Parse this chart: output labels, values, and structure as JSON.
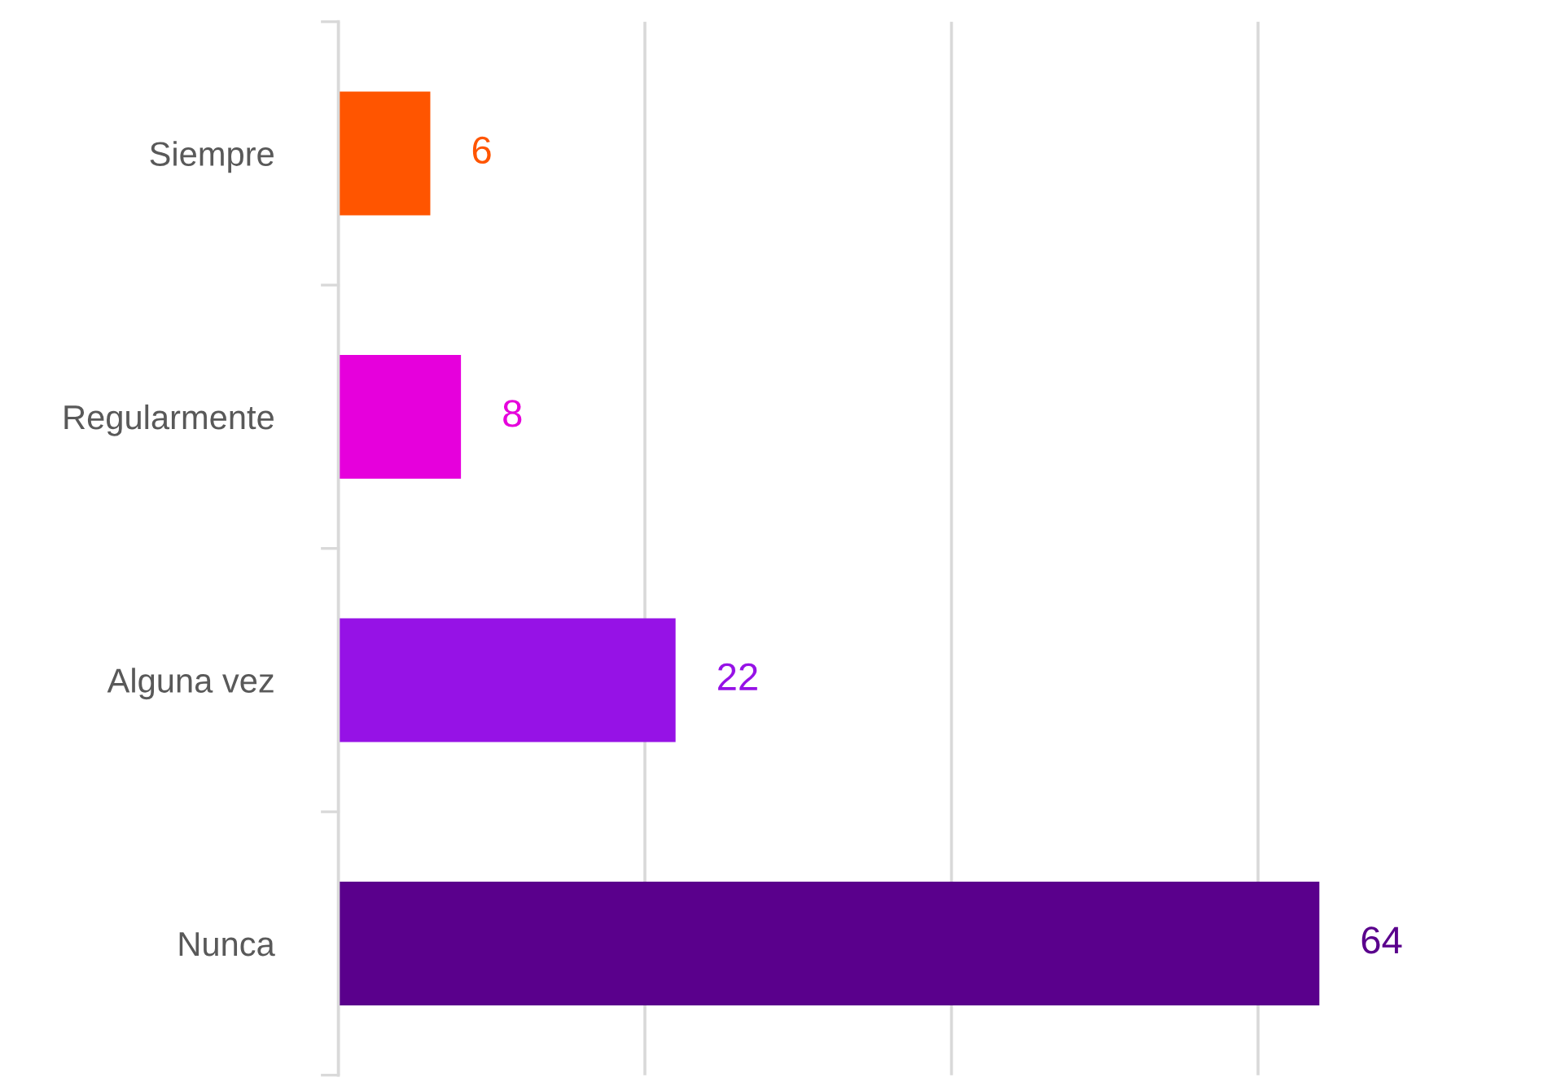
{
  "chart_data": {
    "type": "bar",
    "orientation": "horizontal",
    "categories": [
      "Siempre",
      "Regularmente",
      "Alguna vez",
      "Nunca"
    ],
    "values": [
      6,
      8,
      22,
      64
    ],
    "colors": [
      "#ff5500",
      "#e600dc",
      "#9612e6",
      "#5a008c"
    ],
    "data_labels": true,
    "xticks": [
      {
        "value": 0,
        "label": null
      },
      {
        "value": 20,
        "label": null
      },
      {
        "value": 40,
        "label": null
      },
      {
        "value": 60,
        "label": null
      }
    ],
    "grid": "x",
    "tick_labels": "y"
  }
}
